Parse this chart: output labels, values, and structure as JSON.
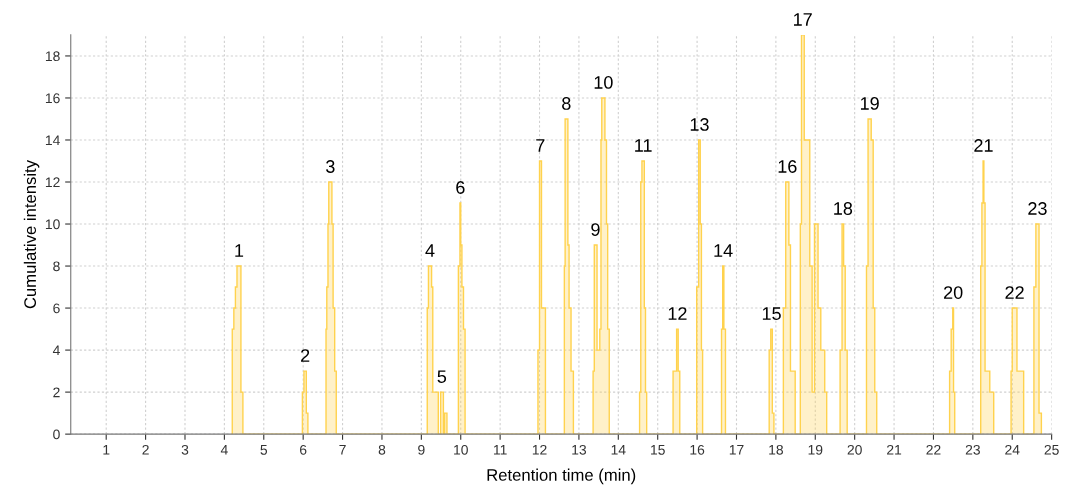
{
  "chart_data": {
    "type": "histogram",
    "xlabel": "Retention time (min)",
    "ylabel": "Cumulative intensity",
    "bins": [
      4.2,
      4.24,
      4.28,
      4.32,
      4.42,
      4.47,
      5.98,
      6.02,
      6.08,
      6.12,
      6.58,
      6.6,
      6.63,
      6.65,
      6.73,
      6.76,
      6.8,
      6.84,
      9.15,
      9.18,
      9.26,
      9.29,
      9.43,
      9.49,
      9.56,
      9.59,
      9.65,
      9.94,
      9.98,
      10.0,
      10.03,
      10.07,
      10.11,
      11.96,
      12.0,
      12.05,
      12.15,
      12.63,
      12.65,
      12.72,
      12.75,
      12.8,
      12.86,
      13.36,
      13.39,
      13.46,
      13.53,
      13.56,
      13.58,
      13.66,
      13.7,
      13.73,
      13.77,
      14.54,
      14.57,
      14.6,
      14.66,
      14.69,
      14.72,
      15.39,
      15.48,
      15.52,
      15.56,
      15.99,
      16.04,
      16.08,
      16.11,
      16.14,
      16.62,
      16.65,
      16.68,
      16.72,
      17.83,
      17.87,
      17.91,
      17.95,
      18.19,
      18.25,
      18.33,
      18.37,
      18.49,
      18.62,
      18.65,
      18.72,
      18.86,
      18.92,
      18.98,
      19.07,
      19.14,
      19.24,
      19.29,
      19.63,
      19.68,
      19.72,
      19.76,
      19.81,
      20.3,
      20.34,
      20.42,
      20.47,
      20.51,
      20.56,
      22.41,
      22.45,
      22.49,
      22.51,
      22.54,
      23.2,
      23.23,
      23.26,
      23.28,
      23.31,
      23.43,
      23.53,
      23.97,
      24.0,
      24.12,
      24.29,
      24.55,
      24.6,
      24.68,
      24.74
    ],
    "values": [
      5,
      6,
      7,
      8,
      2,
      0,
      2,
      3,
      1,
      0,
      5,
      7,
      10,
      12,
      10,
      6,
      3,
      0,
      6,
      8,
      7,
      2,
      0,
      2,
      0,
      1,
      0,
      8,
      11,
      9,
      7,
      5,
      0,
      4,
      13,
      6,
      0,
      8,
      15,
      9,
      6,
      3,
      0,
      3,
      9,
      4,
      5,
      14,
      16,
      14,
      10,
      5,
      0,
      2,
      12,
      13,
      6,
      2,
      0,
      3,
      5,
      3,
      0,
      7,
      14,
      10,
      4,
      0,
      5,
      8,
      5,
      0,
      4,
      5,
      1,
      0,
      6,
      12,
      9,
      3,
      0,
      10,
      19,
      14,
      8,
      2,
      10,
      6,
      4,
      2,
      0,
      4,
      10,
      8,
      4,
      0,
      8,
      15,
      14,
      6,
      2,
      0,
      3,
      5,
      6,
      2,
      0,
      8,
      11,
      13,
      11,
      3,
      2,
      0,
      3,
      6,
      3,
      0,
      7,
      10,
      1
    ],
    "color": "#ffd24d",
    "xlim": [
      0.1,
      25
    ],
    "xticks": [
      1,
      2,
      3,
      4,
      5,
      6,
      7,
      8,
      9,
      10,
      11,
      12,
      13,
      14,
      15,
      16,
      17,
      18,
      19,
      20,
      21,
      22,
      23,
      24,
      25
    ],
    "ylim": [
      0,
      19
    ],
    "yticks": [
      0,
      2,
      4,
      6,
      8,
      10,
      12,
      14,
      16,
      18
    ],
    "grid": true,
    "annotations": [
      {
        "text": "1",
        "x": 4.37,
        "y": 8
      },
      {
        "text": "2",
        "x": 6.05,
        "y": 3
      },
      {
        "text": "3",
        "x": 6.69,
        "y": 12
      },
      {
        "text": "4",
        "x": 9.22,
        "y": 8
      },
      {
        "text": "5",
        "x": 9.52,
        "y": 2
      },
      {
        "text": "6",
        "x": 9.99,
        "y": 11
      },
      {
        "text": "7",
        "x": 12.02,
        "y": 13
      },
      {
        "text": "8",
        "x": 12.68,
        "y": 15
      },
      {
        "text": "9",
        "x": 13.42,
        "y": 9
      },
      {
        "text": "10",
        "x": 13.62,
        "y": 16
      },
      {
        "text": "11",
        "x": 14.63,
        "y": 13
      },
      {
        "text": "12",
        "x": 15.5,
        "y": 5
      },
      {
        "text": "13",
        "x": 16.06,
        "y": 14
      },
      {
        "text": "14",
        "x": 16.66,
        "y": 8
      },
      {
        "text": "15",
        "x": 17.89,
        "y": 5
      },
      {
        "text": "16",
        "x": 18.29,
        "y": 12
      },
      {
        "text": "17",
        "x": 18.68,
        "y": 19
      },
      {
        "text": "18",
        "x": 19.7,
        "y": 10
      },
      {
        "text": "19",
        "x": 20.38,
        "y": 15
      },
      {
        "text": "20",
        "x": 22.5,
        "y": 6
      },
      {
        "text": "21",
        "x": 23.27,
        "y": 13
      },
      {
        "text": "22",
        "x": 24.06,
        "y": 6
      },
      {
        "text": "23",
        "x": 24.64,
        "y": 10
      }
    ]
  }
}
